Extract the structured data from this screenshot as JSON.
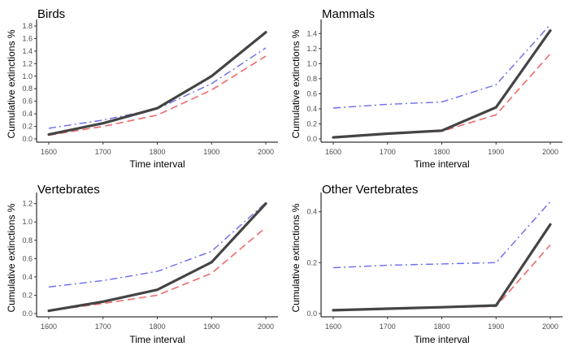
{
  "chart_data": [
    {
      "type": "line",
      "title": "Birds",
      "xlabel": "Time interval",
      "ylabel": "Cumulative extinctions %",
      "x": [
        1600,
        1700,
        1800,
        1900,
        2000
      ],
      "xlim": [
        1600,
        2000
      ],
      "ylim": [
        0,
        1.8
      ],
      "yticks": [
        0.0,
        0.2,
        0.4,
        0.6,
        0.8,
        1.0,
        1.2,
        1.4,
        1.6,
        1.8
      ],
      "ytick_labels": [
        "0.0",
        "0.2",
        "0.4",
        "0.6",
        "0.8",
        "1.0",
        "1.2",
        "1.4",
        "1.6",
        "1.8"
      ],
      "series": [
        {
          "style": "dashdot",
          "color": "#6a6aee",
          "values": [
            0.17,
            0.3,
            0.48,
            0.88,
            1.45
          ]
        },
        {
          "style": "dashed",
          "color": "#ee6a6a",
          "values": [
            0.06,
            0.2,
            0.38,
            0.78,
            1.32
          ]
        },
        {
          "style": "solid",
          "color": "#444444",
          "values": [
            0.07,
            0.25,
            0.49,
            1.0,
            1.7
          ]
        }
      ]
    },
    {
      "type": "line",
      "title": "Mammals",
      "xlabel": "Time interval",
      "ylabel": "Cumulative extinctions %",
      "x": [
        1600,
        1700,
        1800,
        1900,
        2000
      ],
      "xlim": [
        1600,
        2000
      ],
      "ylim": [
        0,
        1.5
      ],
      "yticks": [
        0.0,
        0.2,
        0.4,
        0.6,
        0.8,
        1.0,
        1.2,
        1.4
      ],
      "ytick_labels": [
        "0.0",
        "0.2",
        "0.4",
        "0.6",
        "0.8",
        "1.0",
        "1.2",
        "1.4"
      ],
      "series": [
        {
          "style": "dashdot",
          "color": "#6a6aee",
          "values": [
            0.41,
            0.46,
            0.49,
            0.72,
            1.52
          ]
        },
        {
          "style": "dashed",
          "color": "#ee6a6a",
          "values": [
            0.02,
            0.07,
            0.1,
            0.32,
            1.13
          ]
        },
        {
          "style": "solid",
          "color": "#444444",
          "values": [
            0.02,
            0.07,
            0.11,
            0.42,
            1.44
          ]
        }
      ]
    },
    {
      "type": "line",
      "title": "Vertebrates",
      "xlabel": "Time interval",
      "ylabel": "Cumulative extinctions %",
      "x": [
        1600,
        1700,
        1800,
        1900,
        2000
      ],
      "xlim": [
        1600,
        2000
      ],
      "ylim": [
        0,
        1.25
      ],
      "yticks": [
        0.0,
        0.2,
        0.4,
        0.6,
        0.8,
        1.0,
        1.2
      ],
      "ytick_labels": [
        "0.0",
        "0.2",
        "0.4",
        "0.6",
        "0.8",
        "1.0",
        "1.2"
      ],
      "series": [
        {
          "style": "dashdot",
          "color": "#6a6aee",
          "values": [
            0.29,
            0.36,
            0.46,
            0.68,
            1.21
          ]
        },
        {
          "style": "dashed",
          "color": "#ee6a6a",
          "values": [
            0.03,
            0.11,
            0.2,
            0.44,
            0.94
          ]
        },
        {
          "style": "solid",
          "color": "#444444",
          "values": [
            0.03,
            0.13,
            0.26,
            0.56,
            1.2
          ]
        }
      ]
    },
    {
      "type": "line",
      "title": "Other Vertebrates",
      "xlabel": "Time interval",
      "ylabel": "Cumulative extinctions %",
      "x": [
        1600,
        1700,
        1800,
        1900,
        2000
      ],
      "xlim": [
        1600,
        2000
      ],
      "ylim": [
        0,
        0.45
      ],
      "yticks": [
        0.0,
        0.2,
        0.4
      ],
      "ytick_labels": [
        "0.0",
        "0.2",
        "0.4"
      ],
      "series": [
        {
          "style": "dashdot",
          "color": "#6a6aee",
          "values": [
            0.18,
            0.19,
            0.195,
            0.2,
            0.44
          ]
        },
        {
          "style": "dashed",
          "color": "#ee6a6a",
          "values": [
            0.012,
            0.018,
            0.024,
            0.028,
            0.27
          ]
        },
        {
          "style": "solid",
          "color": "#444444",
          "values": [
            0.013,
            0.019,
            0.025,
            0.032,
            0.35
          ]
        }
      ]
    }
  ]
}
